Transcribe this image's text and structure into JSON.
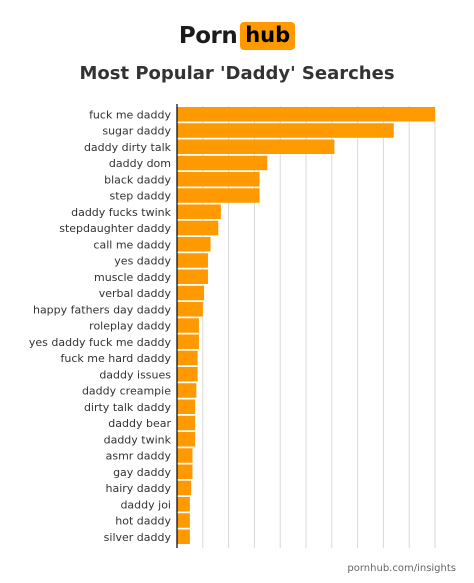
{
  "header": {
    "logo_left": "Porn",
    "logo_right": "hub",
    "title": "Most Popular 'Daddy' Searches"
  },
  "footer": {
    "source": "pornhub.com/insights"
  },
  "colors": {
    "bar": "#ff9900",
    "grid": "#d9d9d9",
    "axis": "#000000",
    "text": "#333333"
  },
  "chart_data": {
    "type": "bar",
    "orientation": "horizontal",
    "title": "Most Popular 'Daddy' Searches",
    "xlabel": "",
    "ylabel": "",
    "grid": true,
    "xlim": [
      0,
      100
    ],
    "categories": [
      "fuck me daddy",
      "sugar daddy",
      "daddy dirty talk",
      "daddy dom",
      "black daddy",
      "step daddy",
      "daddy fucks twink",
      "stepdaughter daddy",
      "call me daddy",
      "yes daddy",
      "muscle daddy",
      "verbal daddy",
      "happy fathers day daddy",
      "roleplay daddy",
      "yes daddy fuck me daddy",
      "fuck me hard daddy",
      "daddy issues",
      "daddy creampie",
      "dirty talk daddy",
      "daddy bear",
      "daddy twink",
      "asmr daddy",
      "gay daddy",
      "hairy daddy",
      "daddy joi",
      "hot daddy",
      "silver daddy"
    ],
    "values": [
      100,
      84,
      61,
      35,
      32,
      32,
      17,
      16,
      13,
      12,
      12,
      10.5,
      10,
      8.5,
      8.5,
      8,
      8,
      7.5,
      7,
      7,
      7,
      6,
      6,
      5.5,
      5,
      5,
      5
    ]
  }
}
